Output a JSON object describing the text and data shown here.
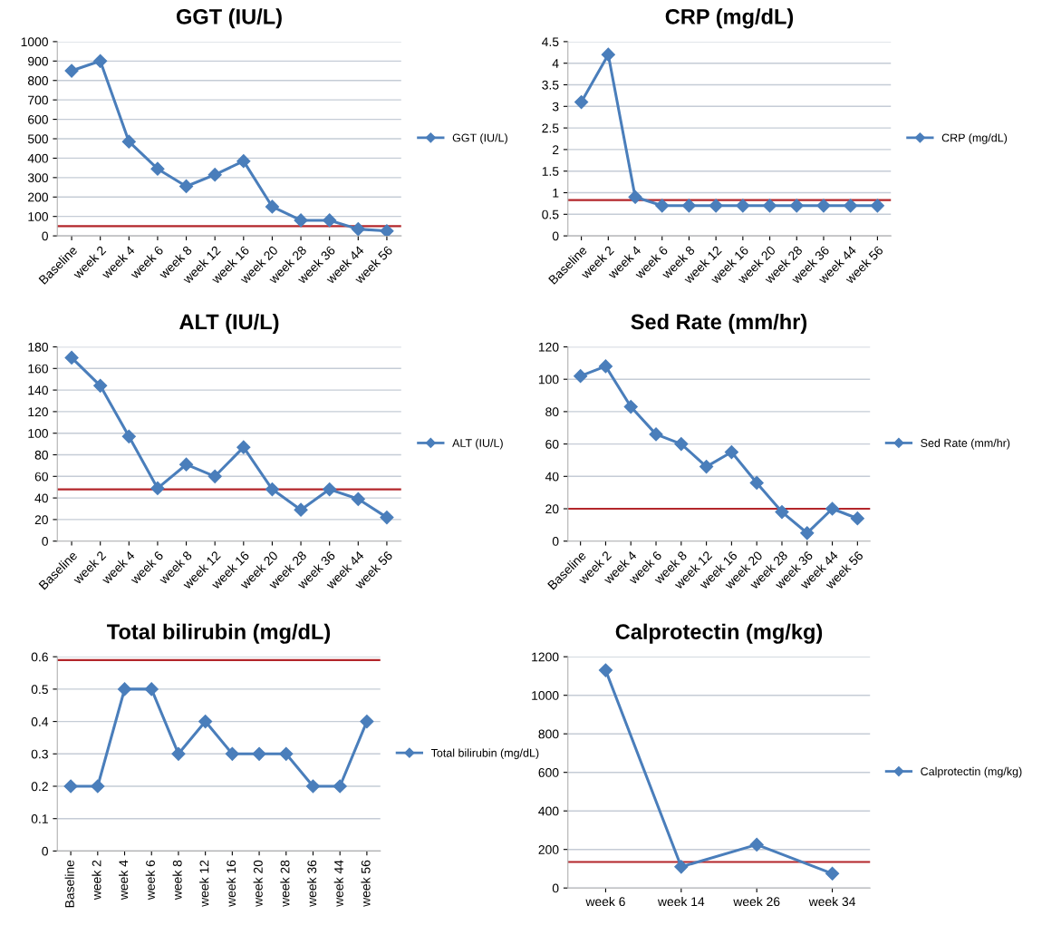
{
  "chart_data": [
    {
      "type": "line",
      "title": "GGT (IU/L)",
      "categories": [
        "Baseline",
        "week 2",
        "week 4",
        "week 6",
        "week 8",
        "week 12",
        "week 16",
        "week 20",
        "week 28",
        "week 36",
        "week 44",
        "week 56"
      ],
      "series": [
        {
          "name": "GGT (IU/L)",
          "color": "#4a7ebb",
          "values": [
            850,
            900,
            485,
            345,
            255,
            315,
            385,
            150,
            80,
            80,
            35,
            25
          ]
        }
      ],
      "ylim": [
        0,
        1000
      ],
      "yticks": [
        0,
        100,
        200,
        300,
        400,
        500,
        600,
        700,
        800,
        900,
        1000
      ],
      "grid": "y",
      "legend": "right",
      "marker": "diamond",
      "line_style": "solid",
      "ref_lines": [
        {
          "axis": "y",
          "value": 50,
          "color": "#b3262a"
        }
      ]
    },
    {
      "type": "line",
      "title": "CRP (mg/dL)",
      "categories": [
        "Baseline",
        "week 2",
        "week 4",
        "week 6",
        "week 8",
        "week 12",
        "week 16",
        "week 20",
        "week 28",
        "week 36",
        "week 44",
        "week 56"
      ],
      "series": [
        {
          "name": "CRP (mg/dL)",
          "color": "#4a7ebb",
          "values": [
            3.1,
            4.2,
            0.9,
            0.7,
            0.7,
            0.7,
            0.7,
            0.7,
            0.7,
            0.7,
            0.7,
            0.7
          ]
        }
      ],
      "ylim": [
        0,
        4.5
      ],
      "yticks": [
        0,
        0.5,
        1,
        1.5,
        2,
        2.5,
        3,
        3.5,
        4,
        4.5
      ],
      "grid": "y",
      "legend": "right",
      "marker": "diamond",
      "line_style": "solid",
      "ref_lines": [
        {
          "axis": "y",
          "value": 0.83,
          "color": "#b3262a"
        }
      ]
    },
    {
      "type": "line",
      "title": "ALT (IU/L)",
      "categories": [
        "Baseline",
        "week 2",
        "week 4",
        "week 6",
        "week 8",
        "week 12",
        "week 16",
        "week 20",
        "week 28",
        "week 36",
        "week 44",
        "week 56"
      ],
      "series": [
        {
          "name": "ALT (IU/L)",
          "color": "#4a7ebb",
          "values": [
            170,
            144,
            97,
            49,
            71,
            60,
            87,
            48,
            29,
            48,
            39,
            22
          ]
        }
      ],
      "ylim": [
        0,
        180
      ],
      "yticks": [
        0,
        20,
        40,
        60,
        80,
        100,
        120,
        140,
        160,
        180
      ],
      "grid": "y",
      "legend": "right",
      "marker": "diamond",
      "line_style": "solid",
      "ref_lines": [
        {
          "axis": "y",
          "value": 48,
          "color": "#b3262a"
        }
      ]
    },
    {
      "type": "line",
      "title": "Sed Rate (mm/hr)",
      "categories": [
        "Baseline",
        "week 2",
        "week 4",
        "week 6",
        "week 8",
        "week 12",
        "week 16",
        "week 20",
        "week 28",
        "week 36",
        "week 44",
        "week 56"
      ],
      "series": [
        {
          "name": "Sed Rate (mm/hr)",
          "color": "#4a7ebb",
          "values": [
            102,
            108,
            83,
            66,
            60,
            46,
            55,
            36,
            18,
            5,
            20,
            14
          ]
        }
      ],
      "ylim": [
        0,
        120
      ],
      "yticks": [
        0,
        20,
        40,
        60,
        80,
        100,
        120
      ],
      "grid": "y",
      "legend": "right",
      "marker": "diamond",
      "line_style": "solid",
      "ref_lines": [
        {
          "axis": "y",
          "value": 20,
          "color": "#b3262a"
        }
      ]
    },
    {
      "type": "line",
      "title": "Total bilirubin (mg/dL)",
      "categories": [
        "Baseline",
        "week 2",
        "week 4",
        "week 6",
        "week 8",
        "week 12",
        "week 16",
        "week 20",
        "week 28",
        "week 36",
        "week 44",
        "week 56"
      ],
      "series": [
        {
          "name": "Total bilirubin (mg/dL)",
          "color": "#4a7ebb",
          "values": [
            0.2,
            0.2,
            0.5,
            0.5,
            0.3,
            0.4,
            0.3,
            0.3,
            0.3,
            0.2,
            0.2,
            0.4
          ]
        }
      ],
      "ylim": [
        0,
        0.6
      ],
      "yticks": [
        0,
        0.1,
        0.2,
        0.3,
        0.4,
        0.5,
        0.6
      ],
      "grid": "y",
      "legend": "right",
      "marker": "diamond",
      "line_style": "solid",
      "ref_lines": [
        {
          "axis": "y",
          "value": 0.59,
          "color": "#b3262a"
        }
      ]
    },
    {
      "type": "line",
      "title": "Calprotectin (mg/kg)",
      "categories": [
        "week 6",
        "week 14",
        "week 26",
        "week 34"
      ],
      "series": [
        {
          "name": "Calprotectin (mg/kg)",
          "color": "#4a7ebb",
          "values": [
            1130,
            110,
            225,
            75
          ]
        }
      ],
      "ylim": [
        0,
        1200
      ],
      "yticks": [
        0,
        200,
        400,
        600,
        800,
        1000,
        1200
      ],
      "grid": "y",
      "legend": "right",
      "marker": "diamond",
      "line_style": "solid",
      "ref_lines": [
        {
          "axis": "y",
          "value": 135,
          "color": "#b3262a"
        }
      ]
    }
  ]
}
